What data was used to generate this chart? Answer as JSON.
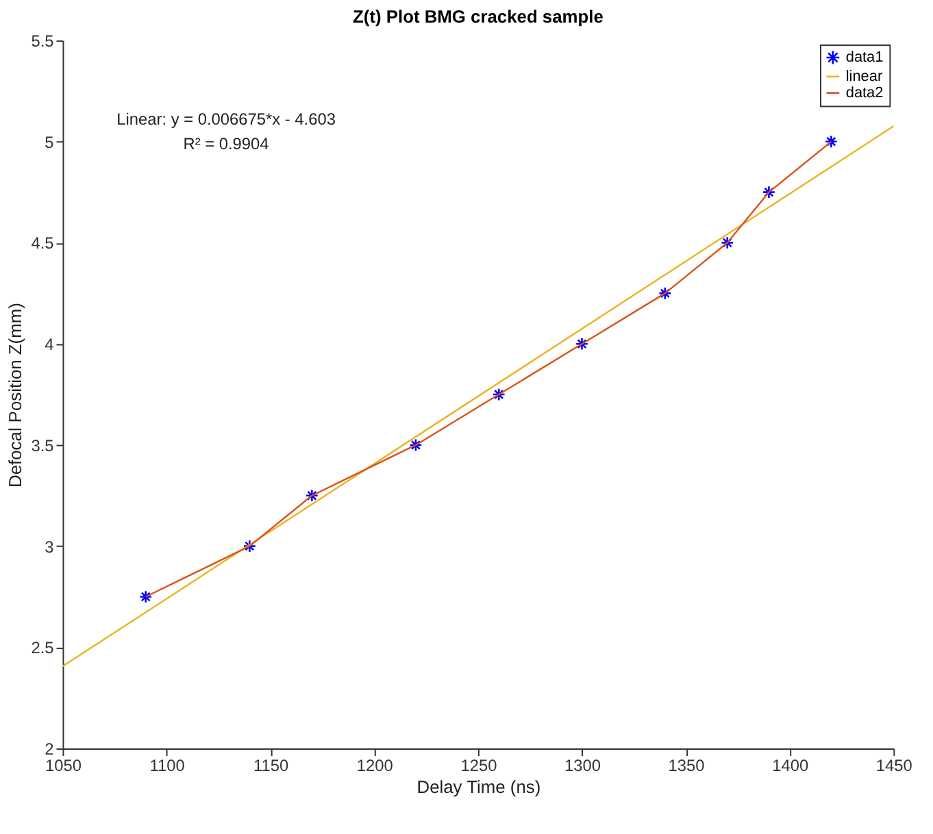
{
  "chart_data": {
    "type": "scatter",
    "title": "Z(t) Plot BMG cracked sample",
    "xlabel": "Delay Time (ns)",
    "ylabel": "Defocal Position Z(mm)",
    "annotations": [
      "Linear:  y = 0.006675*x - 4.603",
      "R² = 0.9904"
    ],
    "x": [
      1090,
      1140,
      1170,
      1220,
      1260,
      1300,
      1340,
      1370,
      1390,
      1420
    ],
    "series": [
      {
        "name": "data1",
        "marker": "cross",
        "color": "#0000ff",
        "values": [
          2.75,
          3.0,
          3.25,
          3.5,
          3.75,
          4.0,
          4.25,
          4.5,
          4.75,
          5.0
        ]
      },
      {
        "name": "linear",
        "type": "line",
        "color": "#edb120",
        "x": [
          1050,
          1450
        ],
        "values": [
          2.406,
          5.076
        ]
      },
      {
        "name": "data2",
        "type": "line",
        "color": "#d95319",
        "values": [
          2.75,
          3.0,
          3.25,
          3.5,
          3.75,
          4.0,
          4.25,
          4.5,
          4.75,
          5.0
        ]
      }
    ],
    "xlim": [
      1050,
      1450
    ],
    "xticks": [
      1050,
      1100,
      1150,
      1200,
      1250,
      1300,
      1350,
      1400,
      1450
    ],
    "ylim": [
      2,
      5.5
    ],
    "yticks": [
      2,
      2.5,
      3,
      3.5,
      4,
      4.5,
      5,
      5.5
    ],
    "grid": false,
    "legend": "top right"
  }
}
